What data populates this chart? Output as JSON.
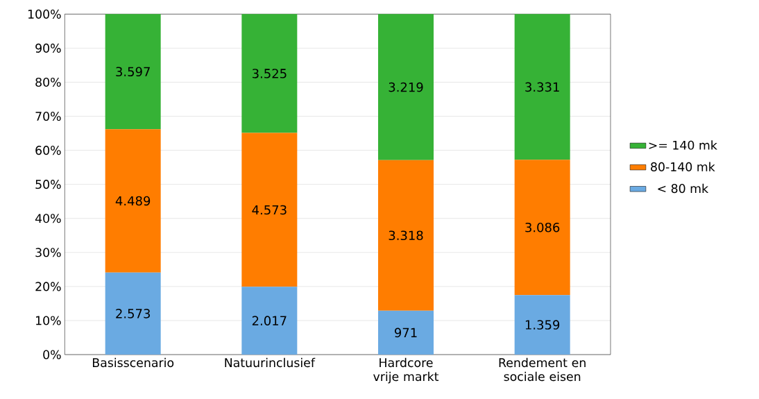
{
  "chart_data": {
    "type": "bar",
    "stacked": true,
    "categories": [
      "Basisscenario",
      "Natuurinclusief",
      "Hardcore vrije markt",
      "Rendement en sociale eisen"
    ],
    "series": [
      {
        "name": "< 80 mk",
        "color": "#6aaae2",
        "values": [
          24.1,
          19.9,
          12.9,
          17.5
        ]
      },
      {
        "name": "80-140 mk",
        "color": "#ff7d00",
        "values": [
          42.1,
          45.2,
          44.2,
          39.7
        ]
      },
      {
        "name": ">= 140 mk",
        "color": "#36b236",
        "values": [
          33.8,
          34.9,
          42.9,
          42.8
        ]
      }
    ],
    "annotations": [
      "2.573",
      "2.017",
      "971",
      "1.359",
      "4.489",
      "4.573",
      "3.318",
      "3.086",
      "3.597",
      "3.525",
      "3.219",
      "3.331"
    ],
    "ylim": [
      0,
      100
    ],
    "yticks": [
      {
        "value": 0,
        "label": "0%"
      },
      {
        "value": 10,
        "label": "10%"
      },
      {
        "value": 20,
        "label": "20%"
      },
      {
        "value": 30,
        "label": "30%"
      },
      {
        "value": 40,
        "label": "40%"
      },
      {
        "value": 50,
        "label": "50%"
      },
      {
        "value": 60,
        "label": "60%"
      },
      {
        "value": 70,
        "label": "70%"
      },
      {
        "value": 80,
        "label": "80%"
      },
      {
        "value": 90,
        "label": "90%"
      },
      {
        "value": 100,
        "label": "100%"
      }
    ],
    "grid": "y",
    "legend": "right"
  }
}
